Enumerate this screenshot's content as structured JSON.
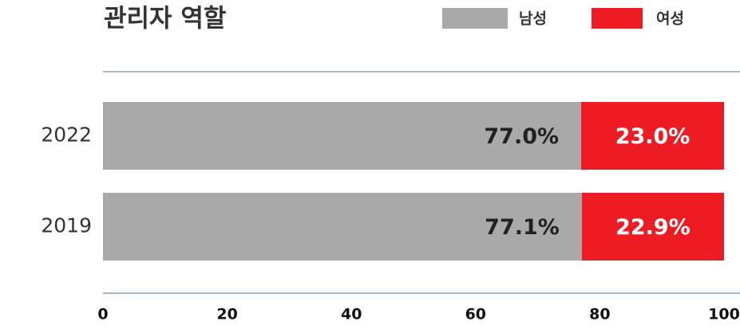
{
  "chart_data": {
    "type": "stacked-barh",
    "title": "관리자 역할",
    "categories": [
      "2022",
      "2019"
    ],
    "series": [
      {
        "name": "남성",
        "color": "#a9a9a9",
        "values": [
          77.0,
          77.1
        ],
        "value_labels": [
          "77.0%",
          "77.1%"
        ],
        "label_color": "#222222"
      },
      {
        "name": "여성",
        "color": "#ed1c24",
        "values": [
          23.0,
          22.9
        ],
        "value_labels": [
          "23.0%",
          "22.9%"
        ],
        "label_color": "#ffffff"
      }
    ],
    "xlim": [
      0,
      100
    ],
    "xticks": [
      0,
      20,
      40,
      60,
      80,
      100
    ]
  }
}
